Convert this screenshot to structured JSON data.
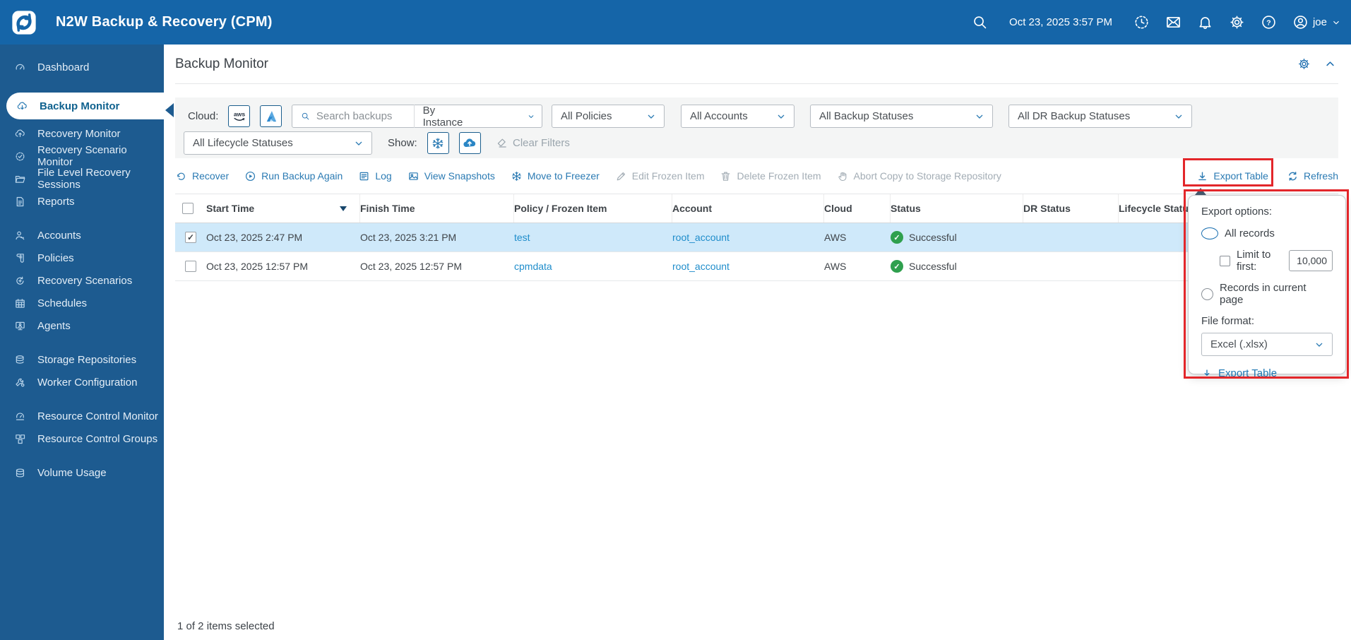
{
  "colors": {
    "header_bg": "#1565a8",
    "sidebar_bg": "#1d5b90",
    "accent": "#2a7ab3",
    "link": "#1f8dcb",
    "selected_row": "#cfe9fa",
    "success_green": "#2fa04e",
    "highlight_red": "#e3262a"
  },
  "header": {
    "app_title": "N2W Backup & Recovery (CPM)",
    "datetime": "Oct 23, 2025 3:57 PM",
    "username": "joe",
    "icons": [
      "search-icon",
      "clock-icon",
      "mail-icon",
      "bell-icon",
      "gear-icon",
      "help-icon",
      "user-icon",
      "chevron-down-icon"
    ]
  },
  "sidebar": {
    "items": [
      {
        "label": "Dashboard",
        "icon": "gauge",
        "active": false
      },
      {
        "label": "Backup Monitor",
        "icon": "cloud-backup",
        "active": true
      },
      {
        "label": "Recovery Monitor",
        "icon": "cloud-recovery",
        "active": false
      },
      {
        "label": "Recovery Scenario Monitor",
        "icon": "scenario-monitor",
        "active": false
      },
      {
        "label": "File Level Recovery Sessions",
        "icon": "folder",
        "active": false
      },
      {
        "label": "Reports",
        "icon": "report",
        "active": false
      },
      {
        "label": "Accounts",
        "icon": "user-key",
        "active": false
      },
      {
        "label": "Policies",
        "icon": "policy",
        "active": false
      },
      {
        "label": "Recovery Scenarios",
        "icon": "scenario",
        "active": false
      },
      {
        "label": "Schedules",
        "icon": "calendar",
        "active": false
      },
      {
        "label": "Agents",
        "icon": "agent",
        "active": false
      },
      {
        "label": "Storage Repositories",
        "icon": "storage",
        "active": false
      },
      {
        "label": "Worker Configuration",
        "icon": "worker",
        "active": false
      },
      {
        "label": "Resource Control Monitor",
        "icon": "rc-monitor",
        "active": false
      },
      {
        "label": "Resource Control Groups",
        "icon": "rc-groups",
        "active": false
      },
      {
        "label": "Volume Usage",
        "icon": "volume",
        "active": false
      }
    ]
  },
  "page": {
    "title": "Backup Monitor"
  },
  "filters": {
    "cloud_label": "Cloud:",
    "cloud_providers": [
      "AWS",
      "Azure"
    ],
    "search_placeholder": "Search backups",
    "search_by": "By Instance",
    "policies": "All Policies",
    "accounts": "All Accounts",
    "backup_statuses": "All Backup Statuses",
    "dr_backup_statuses": "All DR Backup Statuses",
    "lifecycle_statuses": "All Lifecycle Statuses",
    "show_label": "Show:",
    "clear_filters": "Clear Filters"
  },
  "toolbar": {
    "buttons": [
      {
        "label": "Recover",
        "icon": "recover",
        "enabled": true
      },
      {
        "label": "Run Backup Again",
        "icon": "play-circle",
        "enabled": true
      },
      {
        "label": "Log",
        "icon": "log",
        "enabled": true
      },
      {
        "label": "View Snapshots",
        "icon": "snapshots",
        "enabled": true
      },
      {
        "label": "Move to Freezer",
        "icon": "snowflake",
        "enabled": true
      },
      {
        "label": "Edit Frozen Item",
        "icon": "pencil",
        "enabled": false
      },
      {
        "label": "Delete Frozen Item",
        "icon": "trash",
        "enabled": false
      },
      {
        "label": "Abort Copy to Storage Repository",
        "icon": "hand",
        "enabled": false
      }
    ],
    "export_label": "Export Table",
    "refresh_label": "Refresh"
  },
  "table": {
    "sorted_by": "Start Time",
    "sort_direction": "desc",
    "columns": [
      "Start Time",
      "Finish Time",
      "Policy / Frozen Item",
      "Account",
      "Cloud",
      "Status",
      "DR Status",
      "Lifecycle Status"
    ],
    "rows": [
      {
        "selected": true,
        "start": "Oct 23, 2025 2:47 PM",
        "finish": "Oct 23, 2025 3:21 PM",
        "policy": "test",
        "account": "root_account",
        "cloud": "AWS",
        "status": "Successful",
        "dr_status": "",
        "lifecycle": ""
      },
      {
        "selected": false,
        "start": "Oct 23, 2025 12:57 PM",
        "finish": "Oct 23, 2025 12:57 PM",
        "policy": "cpmdata",
        "account": "root_account",
        "cloud": "AWS",
        "status": "Successful",
        "dr_status": "",
        "lifecycle": ""
      }
    ]
  },
  "export_popup": {
    "title": "Export options:",
    "all_records": "All records",
    "all_records_selected": true,
    "limit_label": "Limit to first:",
    "limit_checked": false,
    "limit_value": "10,000",
    "current_page": "Records in current page",
    "file_format_label": "File format:",
    "file_format_value": "Excel (.xlsx)",
    "export_button": "Export Table"
  },
  "footer": {
    "selection": "1 of 2 items selected"
  }
}
